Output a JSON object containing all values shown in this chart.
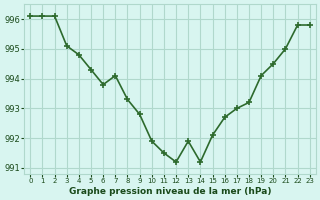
{
  "x": [
    0,
    1,
    2,
    3,
    4,
    5,
    6,
    7,
    8,
    9,
    10,
    11,
    12,
    13,
    14,
    15,
    16,
    17,
    18,
    19,
    20,
    21,
    22,
    23
  ],
  "y": [
    996.1,
    996.1,
    996.1,
    995.1,
    994.8,
    994.3,
    993.8,
    994.1,
    993.3,
    992.8,
    991.9,
    991.5,
    991.2,
    991.9,
    991.2,
    992.1,
    992.7,
    993.0,
    993.2,
    994.1,
    994.5,
    995.0,
    995.8,
    995.8
  ],
  "line_color": "#2d6a2d",
  "marker_color": "#2d6a2d",
  "bg_color": "#d8f5f0",
  "grid_color": "#b0d8cc",
  "xlabel": "Graphe pression niveau de la mer (hPa)",
  "xlabel_color": "#1a4a1a",
  "tick_color": "#1a4a1a",
  "ylim": [
    990.8,
    996.5
  ],
  "xlim": [
    -0.5,
    23.5
  ],
  "yticks": [
    991,
    992,
    993,
    994,
    995,
    996
  ],
  "xtick_labels": [
    "0",
    "1",
    "2",
    "3",
    "4",
    "5",
    "6",
    "7",
    "8",
    "9",
    "10",
    "11",
    "12",
    "13",
    "14",
    "15",
    "16",
    "17",
    "18",
    "19",
    "20",
    "21",
    "22",
    "23"
  ]
}
